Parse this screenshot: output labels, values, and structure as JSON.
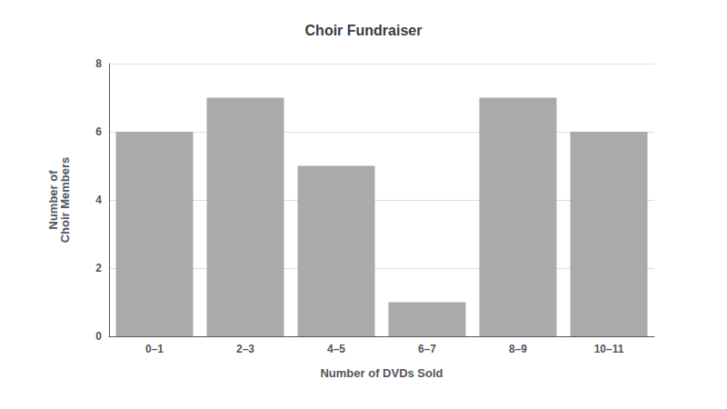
{
  "chart_data": {
    "type": "bar",
    "title": "Choir Fundraiser",
    "xlabel": "Number of DVDs Sold",
    "ylabel": "Number of\nChoir Members",
    "categories": [
      "0–1",
      "2–3",
      "4–5",
      "6–7",
      "8–9",
      "10–11"
    ],
    "values": [
      6,
      7,
      5,
      1,
      7,
      6
    ],
    "color": "#aaaaaa",
    "ylim": [
      0,
      8
    ],
    "yticks": [
      0,
      2,
      4,
      6,
      8
    ],
    "grid": true
  }
}
